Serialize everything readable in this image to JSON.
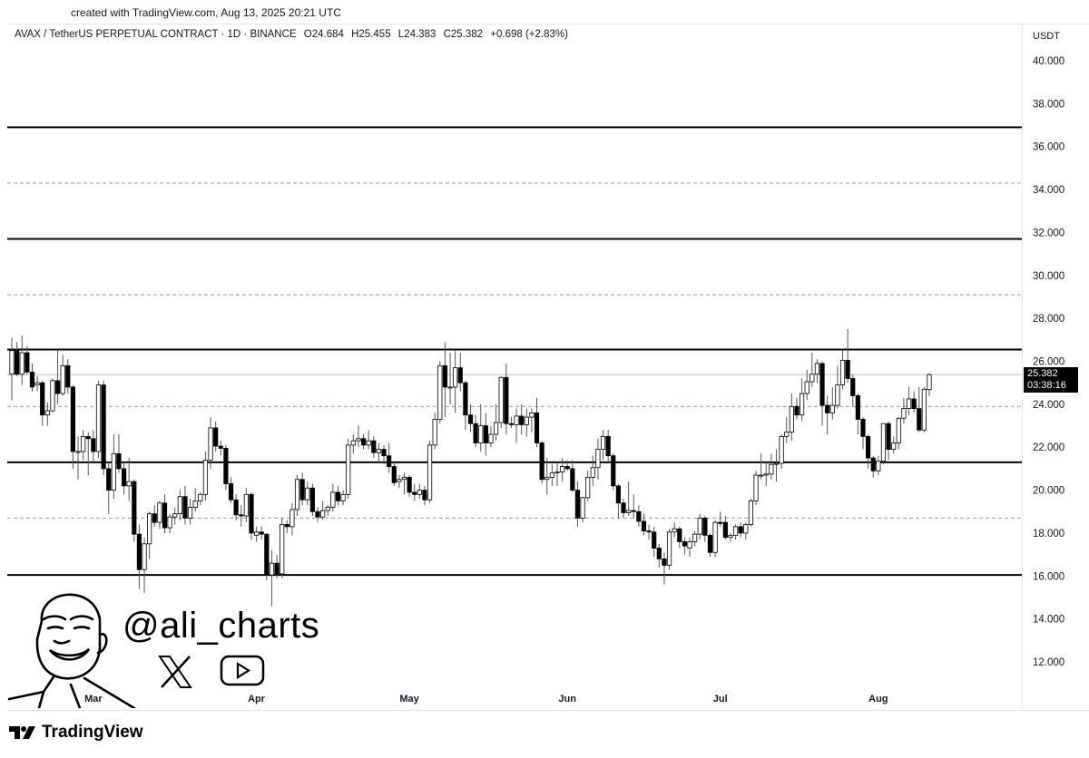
{
  "created_text": "created with TradingView.com, Aug 13, 2025 20:21 UTC",
  "legend": {
    "symbol": "AVAX / TetherUS PERPETUAL CONTRACT · 1D · BINANCE",
    "open": "O24.684",
    "high": "H25.455",
    "low": "L24.383",
    "close": "C25.382",
    "change": "+0.698 (+2.83%)"
  },
  "currency": "USDT",
  "price_tag": {
    "price": "25.382",
    "countdown": "03:38:16"
  },
  "watermark": {
    "handle": "@ali_charts",
    "icons": [
      "avatar-caricature",
      "x-logo-icon",
      "youtube-icon"
    ]
  },
  "footer_logo": "TradingView",
  "colors": {
    "up_body": "#ffffff",
    "down_body": "#000000",
    "wick": "#555555",
    "level_solid": "#000000",
    "level_dashed": "#999999"
  },
  "chart_data": {
    "type": "candlestick",
    "symbol": "AVAX/USDT",
    "interval": "1D",
    "ylim": [
      10.5,
      41
    ],
    "y_ticks": [
      "12.000",
      "14.000",
      "16.000",
      "18.000",
      "20.000",
      "22.000",
      "24.000",
      "26.000",
      "28.000",
      "30.000",
      "32.000",
      "34.000",
      "36.000",
      "38.000",
      "40.000"
    ],
    "x_ticks": [
      {
        "label": "Mar",
        "index": 16
      },
      {
        "label": "Apr",
        "index": 48
      },
      {
        "label": "May",
        "index": 78
      },
      {
        "label": "Jun",
        "index": 109
      },
      {
        "label": "Jul",
        "index": 139
      },
      {
        "label": "Aug",
        "index": 170
      }
    ],
    "levels_solid": [
      36.9,
      31.7,
      26.55,
      21.3,
      16.05
    ],
    "levels_dashed": [
      34.3,
      29.1,
      23.9,
      18.7
    ],
    "last_price": 25.382,
    "ohlc": [
      [
        25.4,
        27.1,
        24.2,
        26.5
      ],
      [
        26.5,
        26.9,
        25.3,
        25.4
      ],
      [
        25.4,
        27.2,
        24.9,
        26.4
      ],
      [
        26.4,
        26.7,
        25.4,
        25.5
      ],
      [
        25.5,
        25.9,
        24.6,
        24.8
      ],
      [
        24.9,
        25.3,
        24.6,
        25.0
      ],
      [
        25.0,
        25.1,
        23.0,
        23.5
      ],
      [
        23.5,
        24.1,
        23.0,
        23.7
      ],
      [
        23.7,
        25.2,
        23.6,
        25.1
      ],
      [
        25.1,
        26.5,
        24.0,
        24.5
      ],
      [
        24.5,
        26.3,
        24.4,
        25.8
      ],
      [
        25.8,
        26.1,
        24.5,
        24.8
      ],
      [
        24.8,
        24.9,
        21.0,
        21.8
      ],
      [
        21.8,
        22.5,
        20.5,
        21.8
      ],
      [
        21.8,
        22.8,
        21.4,
        22.5
      ],
      [
        22.5,
        22.7,
        20.7,
        22.4
      ],
      [
        22.4,
        22.8,
        21.3,
        21.8
      ],
      [
        21.8,
        25.1,
        21.5,
        24.9
      ],
      [
        24.9,
        25.1,
        20.7,
        21.0
      ],
      [
        21.0,
        21.3,
        18.9,
        20.0
      ],
      [
        20.0,
        22.6,
        19.6,
        21.7
      ],
      [
        21.7,
        22.6,
        20.8,
        21.0
      ],
      [
        21.0,
        21.3,
        19.8,
        20.2
      ],
      [
        20.2,
        21.5,
        19.5,
        20.4
      ],
      [
        20.4,
        20.5,
        17.6,
        17.95
      ],
      [
        17.95,
        18.4,
        15.4,
        16.3
      ],
      [
        16.3,
        17.8,
        15.2,
        17.5
      ],
      [
        17.5,
        19.0,
        16.8,
        18.9
      ],
      [
        18.9,
        19.3,
        18.3,
        18.5
      ],
      [
        18.5,
        19.5,
        18.2,
        19.4
      ],
      [
        19.4,
        19.8,
        18.0,
        18.25
      ],
      [
        18.25,
        18.9,
        18.0,
        18.75
      ],
      [
        18.75,
        19.2,
        18.4,
        18.9
      ],
      [
        18.9,
        20.0,
        18.6,
        19.7
      ],
      [
        19.7,
        20.2,
        18.4,
        18.7
      ],
      [
        18.7,
        19.6,
        18.4,
        19.2
      ],
      [
        19.2,
        20.1,
        19.0,
        19.5
      ],
      [
        19.5,
        19.9,
        19.3,
        19.8
      ],
      [
        19.8,
        21.8,
        19.5,
        21.4
      ],
      [
        21.4,
        23.4,
        21.0,
        22.9
      ],
      [
        22.9,
        23.2,
        21.8,
        22.05
      ],
      [
        22.05,
        22.3,
        21.6,
        21.95
      ],
      [
        21.95,
        22.1,
        20.0,
        20.3
      ],
      [
        20.3,
        20.6,
        19.4,
        19.55
      ],
      [
        19.55,
        19.8,
        18.6,
        18.85
      ],
      [
        18.85,
        19.3,
        18.3,
        18.8
      ],
      [
        18.8,
        20.1,
        18.5,
        19.8
      ],
      [
        19.8,
        19.9,
        17.7,
        18.0
      ],
      [
        17.9,
        18.3,
        17.6,
        18.05
      ],
      [
        18.05,
        18.3,
        17.7,
        17.95
      ],
      [
        17.95,
        18.0,
        15.8,
        16.05
      ],
      [
        16.05,
        17.2,
        14.6,
        16.6
      ],
      [
        16.6,
        17.0,
        15.9,
        16.1
      ],
      [
        16.1,
        18.7,
        15.9,
        18.4
      ],
      [
        18.4,
        18.6,
        18.0,
        18.3
      ],
      [
        18.3,
        19.4,
        17.9,
        19.1
      ],
      [
        19.1,
        20.7,
        18.8,
        20.5
      ],
      [
        20.5,
        20.8,
        19.3,
        19.55
      ],
      [
        19.55,
        20.4,
        19.3,
        20.1
      ],
      [
        20.1,
        20.3,
        18.8,
        19.0
      ],
      [
        19.0,
        19.2,
        18.5,
        18.75
      ],
      [
        18.75,
        19.5,
        18.6,
        19.05
      ],
      [
        19.05,
        19.3,
        18.8,
        19.2
      ],
      [
        19.2,
        20.3,
        19.0,
        19.9
      ],
      [
        19.9,
        20.2,
        19.3,
        19.5
      ],
      [
        19.5,
        20.0,
        19.3,
        19.8
      ],
      [
        19.8,
        22.4,
        19.6,
        22.1
      ],
      [
        22.1,
        22.6,
        21.7,
        22.3
      ],
      [
        22.3,
        23.0,
        22.0,
        22.4
      ],
      [
        22.4,
        22.6,
        21.9,
        22.1
      ],
      [
        22.1,
        22.8,
        21.9,
        22.3
      ],
      [
        22.3,
        22.5,
        21.5,
        21.75
      ],
      [
        21.75,
        22.2,
        21.3,
        21.9
      ],
      [
        21.9,
        22.1,
        21.2,
        21.6
      ],
      [
        21.6,
        22.2,
        20.8,
        21.1
      ],
      [
        21.1,
        21.3,
        20.2,
        20.35
      ],
      [
        20.4,
        20.7,
        20.1,
        20.5
      ],
      [
        20.5,
        20.8,
        19.8,
        20.6
      ],
      [
        20.6,
        20.7,
        19.7,
        19.9
      ],
      [
        19.9,
        20.3,
        19.5,
        19.8
      ],
      [
        19.8,
        20.3,
        19.6,
        20.0
      ],
      [
        20.0,
        20.2,
        19.3,
        19.55
      ],
      [
        19.55,
        22.3,
        19.4,
        22.1
      ],
      [
        22.1,
        23.6,
        21.9,
        23.3
      ],
      [
        23.3,
        26.0,
        23.1,
        25.8
      ],
      [
        25.8,
        26.9,
        23.4,
        24.8
      ],
      [
        24.8,
        26.4,
        24.0,
        24.8
      ],
      [
        24.8,
        26.5,
        23.6,
        25.7
      ],
      [
        25.7,
        26.4,
        24.6,
        25.0
      ],
      [
        25.0,
        25.1,
        22.8,
        23.5
      ],
      [
        23.5,
        24.0,
        22.7,
        23.1
      ],
      [
        23.1,
        23.5,
        22.0,
        22.2
      ],
      [
        22.2,
        24.0,
        21.8,
        23.0
      ],
      [
        23.0,
        23.6,
        21.6,
        22.2
      ],
      [
        22.2,
        23.0,
        22.0,
        22.6
      ],
      [
        22.6,
        24.0,
        22.3,
        23.15
      ],
      [
        23.15,
        25.3,
        22.9,
        25.25
      ],
      [
        25.25,
        25.9,
        22.6,
        23.1
      ],
      [
        23.1,
        23.4,
        22.9,
        23.05
      ],
      [
        23.05,
        23.8,
        22.2,
        23.45
      ],
      [
        23.45,
        24.0,
        22.6,
        23.05
      ],
      [
        23.05,
        23.8,
        22.5,
        23.4
      ],
      [
        23.4,
        23.8,
        22.7,
        23.6
      ],
      [
        23.6,
        24.3,
        22.0,
        22.2
      ],
      [
        22.2,
        22.3,
        20.3,
        20.5
      ],
      [
        20.5,
        21.5,
        19.8,
        20.6
      ],
      [
        20.6,
        21.2,
        20.2,
        20.8
      ],
      [
        20.8,
        21.3,
        20.2,
        20.85
      ],
      [
        20.85,
        21.5,
        20.4,
        21.1
      ],
      [
        21.1,
        21.4,
        20.9,
        21.0
      ],
      [
        21.0,
        21.4,
        19.9,
        20.0
      ],
      [
        20.0,
        20.4,
        18.3,
        18.7
      ],
      [
        18.7,
        19.7,
        18.5,
        19.65
      ],
      [
        19.65,
        20.9,
        19.5,
        20.6
      ],
      [
        20.6,
        21.6,
        20.2,
        21.05
      ],
      [
        21.05,
        22.4,
        20.5,
        21.9
      ],
      [
        21.9,
        22.8,
        21.4,
        22.5
      ],
      [
        22.5,
        22.8,
        21.3,
        21.6
      ],
      [
        21.6,
        21.7,
        20.0,
        20.2
      ],
      [
        20.2,
        20.3,
        18.7,
        19.4
      ],
      [
        19.4,
        19.6,
        18.7,
        18.95
      ],
      [
        18.95,
        20.4,
        18.8,
        19.05
      ],
      [
        19.05,
        19.8,
        18.7,
        19.0
      ],
      [
        19.0,
        19.3,
        18.3,
        18.55
      ],
      [
        18.55,
        18.9,
        17.9,
        18.1
      ],
      [
        18.1,
        18.4,
        17.7,
        18.05
      ],
      [
        18.05,
        18.3,
        16.9,
        17.3
      ],
      [
        17.3,
        17.5,
        16.4,
        16.8
      ],
      [
        16.8,
        17.1,
        15.6,
        16.5
      ],
      [
        16.5,
        18.2,
        16.3,
        18.05
      ],
      [
        18.05,
        18.5,
        17.8,
        18.2
      ],
      [
        18.2,
        18.3,
        17.3,
        17.6
      ],
      [
        17.6,
        17.8,
        17.0,
        17.4
      ],
      [
        17.3,
        17.8,
        16.9,
        17.6
      ],
      [
        17.6,
        18.1,
        17.4,
        17.95
      ],
      [
        17.95,
        18.9,
        17.7,
        18.7
      ],
      [
        18.7,
        18.8,
        17.6,
        17.9
      ],
      [
        17.9,
        18.0,
        16.9,
        17.1
      ],
      [
        17.1,
        18.6,
        16.9,
        18.5
      ],
      [
        18.5,
        19.0,
        18.3,
        18.45
      ],
      [
        18.5,
        18.8,
        17.7,
        17.8
      ],
      [
        17.8,
        18.0,
        17.6,
        17.9
      ],
      [
        17.9,
        18.4,
        17.7,
        18.3
      ],
      [
        18.3,
        18.5,
        17.8,
        18.0
      ],
      [
        18.0,
        18.5,
        17.7,
        18.4
      ],
      [
        18.4,
        19.6,
        18.3,
        19.5
      ],
      [
        19.5,
        20.9,
        19.3,
        20.7
      ],
      [
        20.7,
        21.7,
        20.5,
        20.7
      ],
      [
        20.7,
        21.3,
        20.2,
        20.75
      ],
      [
        20.75,
        21.7,
        20.5,
        21.2
      ],
      [
        21.2,
        21.9,
        20.4,
        21.25
      ],
      [
        21.25,
        22.6,
        21.0,
        22.5
      ],
      [
        22.5,
        23.4,
        22.2,
        22.7
      ],
      [
        22.7,
        24.5,
        22.3,
        23.9
      ],
      [
        23.9,
        24.3,
        23.3,
        23.5
      ],
      [
        23.5,
        25.2,
        23.2,
        24.5
      ],
      [
        24.5,
        25.6,
        24.2,
        25.05
      ],
      [
        25.05,
        26.4,
        24.8,
        25.4
      ],
      [
        25.4,
        26.1,
        25.0,
        25.9
      ],
      [
        25.9,
        26.0,
        23.0,
        23.95
      ],
      [
        23.95,
        24.4,
        22.6,
        23.6
      ],
      [
        23.6,
        24.8,
        23.3,
        23.95
      ],
      [
        23.95,
        25.8,
        23.8,
        24.9
      ],
      [
        24.9,
        26.5,
        24.7,
        26.05
      ],
      [
        26.05,
        27.5,
        25.0,
        25.2
      ],
      [
        25.2,
        25.4,
        23.9,
        24.4
      ],
      [
        24.4,
        24.5,
        22.6,
        23.3
      ],
      [
        23.3,
        23.4,
        21.9,
        22.5
      ],
      [
        22.5,
        22.6,
        21.0,
        21.5
      ],
      [
        21.5,
        21.6,
        20.6,
        20.9
      ],
      [
        20.9,
        21.6,
        20.7,
        21.35
      ],
      [
        21.35,
        23.1,
        21.2,
        23.1
      ],
      [
        23.1,
        23.2,
        21.4,
        21.9
      ],
      [
        21.9,
        22.5,
        21.7,
        22.2
      ],
      [
        22.2,
        23.4,
        21.9,
        23.35
      ],
      [
        23.35,
        24.3,
        23.1,
        23.8
      ],
      [
        23.8,
        24.8,
        23.5,
        24.25
      ],
      [
        24.25,
        24.6,
        23.6,
        23.8
      ],
      [
        23.8,
        24.8,
        22.7,
        22.8
      ],
      [
        22.8,
        24.8,
        22.7,
        24.7
      ],
      [
        24.684,
        25.455,
        24.383,
        25.382
      ]
    ]
  }
}
